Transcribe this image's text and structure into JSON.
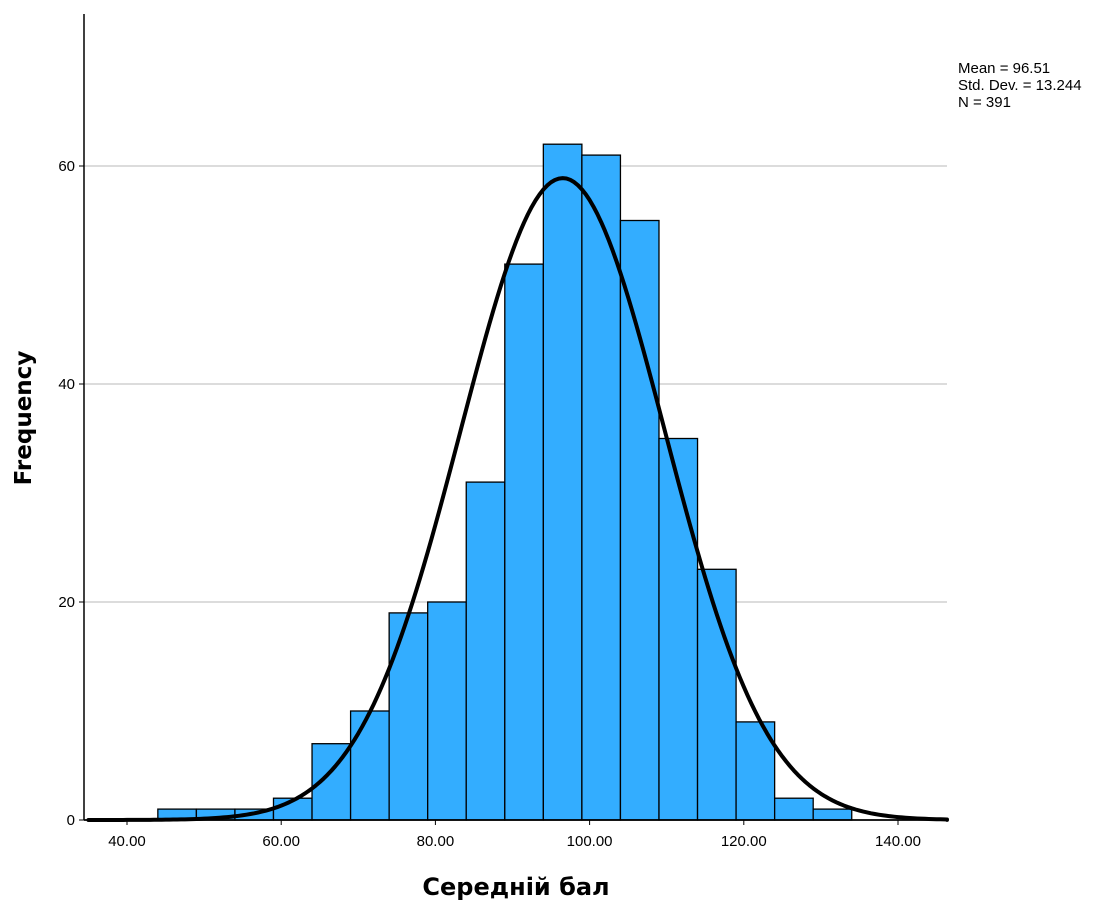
{
  "chart_data": {
    "type": "bar",
    "xlabel": "Середній бал",
    "ylabel": "Frequency",
    "x_ticks": [
      40,
      60,
      80,
      100,
      120,
      140
    ],
    "x_tick_labels": [
      "40.00",
      "60.00",
      "80.00",
      "100.00",
      "120.00",
      "140.00"
    ],
    "y_ticks": [
      0,
      20,
      40,
      60
    ],
    "y_tick_labels": [
      "0",
      "20",
      "40",
      "60"
    ],
    "xlim": [
      35,
      150
    ],
    "ylim": [
      0,
      73
    ],
    "grid": "horizontal",
    "bin_width": 5,
    "bins": [
      {
        "start": 44,
        "end": 49,
        "count": 1
      },
      {
        "start": 49,
        "end": 54,
        "count": 1
      },
      {
        "start": 54,
        "end": 59,
        "count": 1
      },
      {
        "start": 59,
        "end": 64,
        "count": 2
      },
      {
        "start": 64,
        "end": 69,
        "count": 7
      },
      {
        "start": 69,
        "end": 74,
        "count": 10
      },
      {
        "start": 74,
        "end": 79,
        "count": 19
      },
      {
        "start": 79,
        "end": 84,
        "count": 20
      },
      {
        "start": 84,
        "end": 89,
        "count": 31
      },
      {
        "start": 89,
        "end": 94,
        "count": 51
      },
      {
        "start": 94,
        "end": 99,
        "count": 62
      },
      {
        "start": 99,
        "end": 104,
        "count": 61
      },
      {
        "start": 104,
        "end": 109,
        "count": 55
      },
      {
        "start": 109,
        "end": 114,
        "count": 35
      },
      {
        "start": 114,
        "end": 119,
        "count": 23
      },
      {
        "start": 119,
        "end": 124,
        "count": 9
      },
      {
        "start": 124,
        "end": 129,
        "count": 2
      },
      {
        "start": 129,
        "end": 134,
        "count": 1
      }
    ],
    "normal_curve": {
      "mean": 96.51,
      "std": 13.244,
      "n": 391
    },
    "stats_labels": [
      "Mean = 96.51",
      "Std. Dev. = 13.244",
      "N = 391"
    ],
    "colors": {
      "bar": "#33adff",
      "bar_stroke": "#000000",
      "curve": "#000000",
      "grid": "#c8c8c8"
    }
  }
}
